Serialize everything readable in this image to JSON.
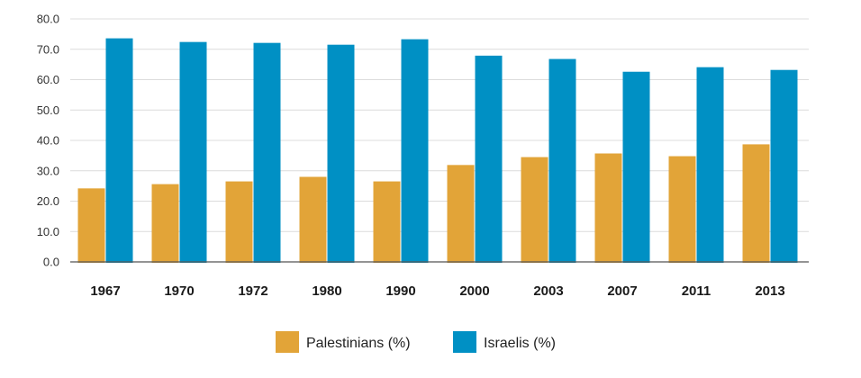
{
  "chart_data": {
    "type": "bar",
    "title": "",
    "xlabel": "",
    "ylabel": "",
    "ylim": [
      0,
      80
    ],
    "yticks": [
      "0.0",
      "10.0",
      "20.0",
      "30.0",
      "40.0",
      "50.0",
      "60.0",
      "70.0",
      "80.0"
    ],
    "grid": true,
    "legend_position": "bottom-center",
    "categories": [
      "1967",
      "1970",
      "1972",
      "1980",
      "1990",
      "2000",
      "2003",
      "2007",
      "2011",
      "2013"
    ],
    "series": [
      {
        "name": "Palestinians (%)",
        "color": "#e2a438",
        "values": [
          24.2,
          25.6,
          26.5,
          28.0,
          26.5,
          31.9,
          34.5,
          35.7,
          34.8,
          38.7
        ]
      },
      {
        "name": "Israelis (%)",
        "color": "#0090c4",
        "values": [
          73.6,
          72.4,
          72.1,
          71.5,
          73.3,
          67.9,
          66.8,
          62.6,
          64.1,
          63.2
        ]
      }
    ]
  }
}
